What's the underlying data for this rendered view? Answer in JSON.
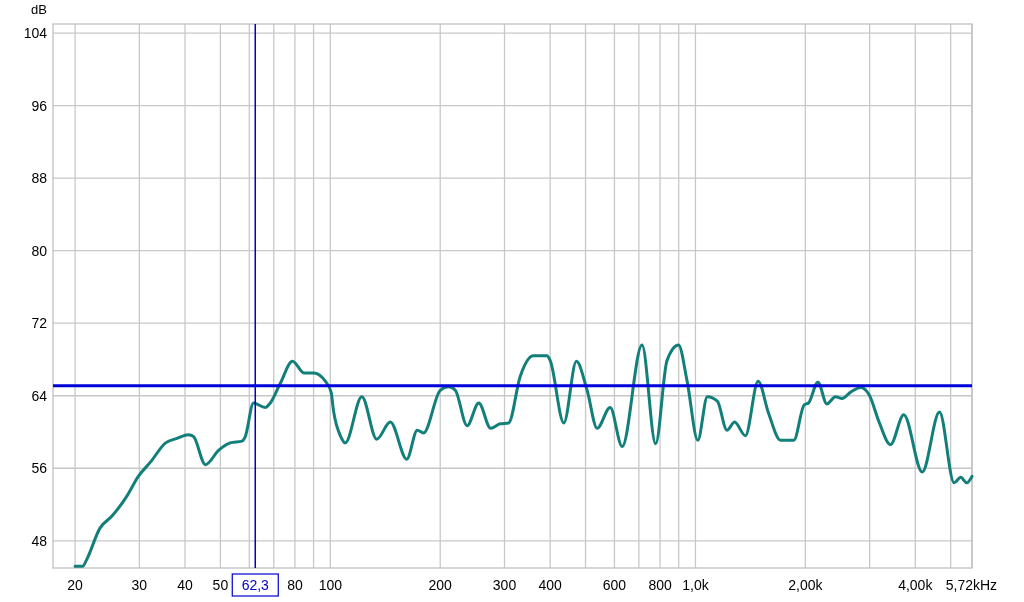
{
  "chart_data": {
    "type": "line",
    "ylabel": "dB",
    "xlabel": "Hz",
    "log": "x",
    "grid": true,
    "marker": "none",
    "line_style": "solid",
    "xlim": [
      17.4,
      5720
    ],
    "ylim": [
      45,
      105
    ],
    "xticks": [
      20,
      30,
      40,
      50,
      {
        "value": 60,
        "label": null
      },
      {
        "value": 70,
        "label": null
      },
      80,
      {
        "value": 90,
        "label": null
      },
      100,
      200,
      300,
      400,
      {
        "value": 500,
        "label": null
      },
      600,
      {
        "value": 700,
        "label": null
      },
      800,
      {
        "value": 900,
        "label": null
      },
      {
        "value": 1000,
        "label": "1,0k"
      },
      {
        "value": 2000,
        "label": "2,00k"
      },
      {
        "value": 3000,
        "label": null
      },
      {
        "value": 4000,
        "label": "4,00k"
      },
      {
        "value": 5000,
        "label": null
      },
      {
        "value": 5720,
        "label": "5,72k"
      }
    ],
    "yticks": [
      48,
      56,
      64,
      72,
      80,
      88,
      96,
      104
    ],
    "ref_lines": [
      {
        "axis": "x",
        "value": 62.3,
        "label": "62,3",
        "color": "#0000cc"
      },
      {
        "axis": "y",
        "value": 65.1,
        "color": "#0000dd"
      }
    ],
    "series": [
      {
        "color": "#137f7a",
        "x": [
          20,
          21,
          21.5,
          23.4,
          25.2,
          27.7,
          29.8,
          32.2,
          35.4,
          38,
          40.9,
          42.2,
          45.5,
          49.5,
          53.2,
          57.3,
          58.5,
          61.6,
          66.3,
          68.5,
          73,
          78.8,
          84.8,
          90.1,
          96.9,
          100.5,
          102,
          106.8,
          109.9,
          122,
          134,
          146,
          162,
          173,
          180,
          200,
          211,
          220,
          237,
          255,
          275,
          292,
          308,
          331,
          360,
          392,
          400,
          436,
          472,
          505,
          538,
          584,
          630,
          714,
          778,
          836,
          899,
          948,
          1015,
          1078,
          1148,
          1220,
          1280,
          1370,
          1485,
          1585,
          1710,
          1860,
          1985,
          2040,
          2165,
          2290,
          2420,
          2520,
          2660,
          2840,
          2990,
          3190,
          3420,
          3720,
          4180,
          4660,
          5110,
          5330,
          5530,
          5720
        ],
        "values": [
          45.2,
          45.2,
          45.9,
          49.4,
          50.7,
          52.9,
          55.1,
          56.7,
          58.8,
          59.3,
          59.7,
          59.5,
          56.4,
          58,
          58.8,
          59,
          59.5,
          63.2,
          62.7,
          63.2,
          65.4,
          67.8,
          66.5,
          66.5,
          65.6,
          64.4,
          62.4,
          59.5,
          58.8,
          63.9,
          59.2,
          61.1,
          57,
          60.2,
          59.9,
          64.6,
          65,
          64.6,
          60.7,
          63.2,
          60.4,
          60.9,
          61,
          66.1,
          68.4,
          68.4,
          67.9,
          61,
          67.8,
          64.6,
          60.4,
          62.7,
          58.4,
          69.6,
          58.7,
          67.9,
          69.6,
          65.7,
          59.1,
          63.9,
          63.4,
          60.2,
          61.1,
          59.6,
          65.6,
          62.1,
          59.1,
          59.1,
          63,
          63.2,
          65.5,
          63.1,
          63.9,
          63.7,
          64.4,
          64.9,
          64.1,
          61,
          58.6,
          61.9,
          55.6,
          62.2,
          54.4,
          55,
          54.4,
          55.1
        ]
      }
    ]
  }
}
